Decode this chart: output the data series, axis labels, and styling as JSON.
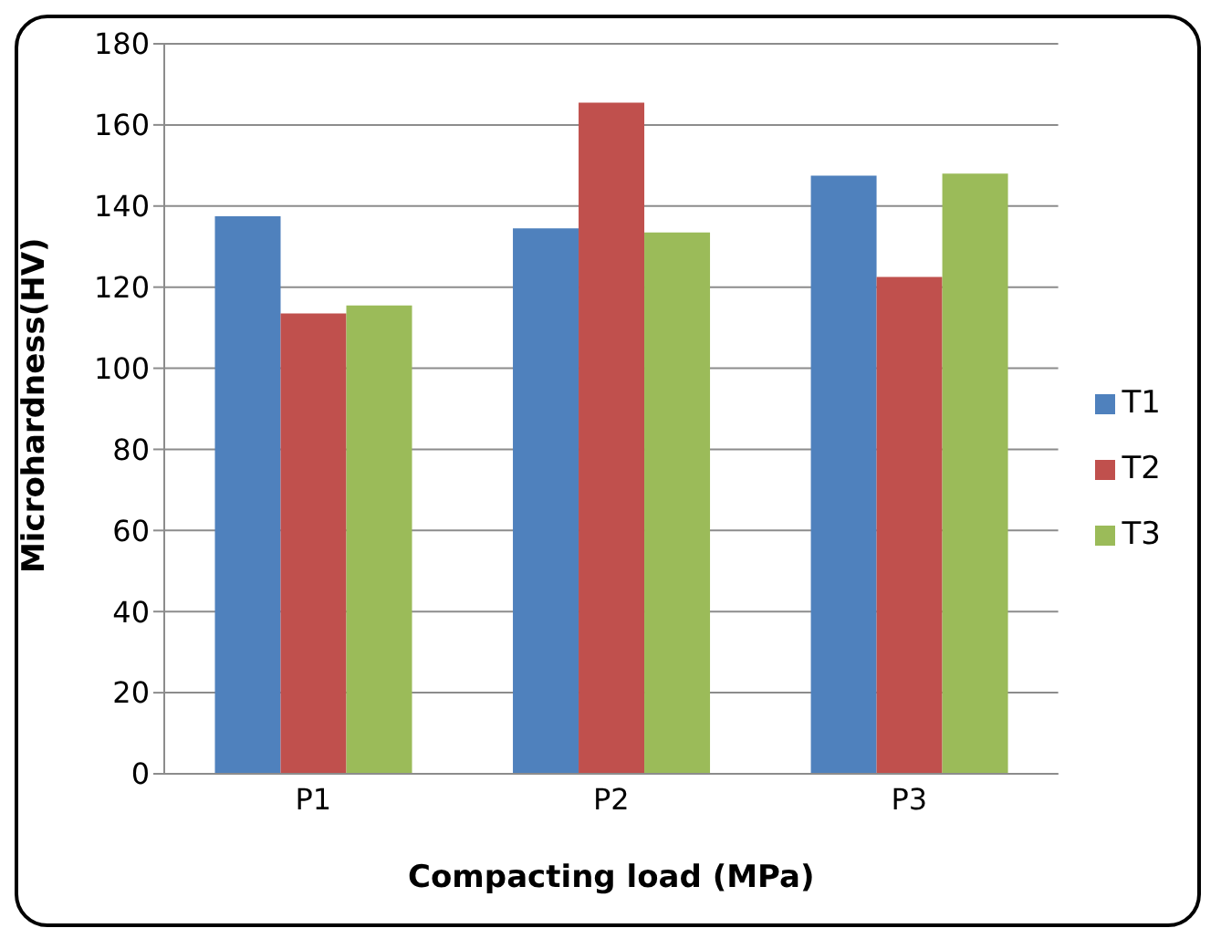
{
  "chart_data": {
    "type": "bar",
    "xlabel": "Compacting load (MPa)",
    "ylabel": "Microhardness(HV)",
    "categories": [
      "P1",
      "P2",
      "P3"
    ],
    "series": [
      {
        "name": "T1",
        "color": "#4f81bd",
        "values": [
          137.5,
          134.5,
          147.5
        ]
      },
      {
        "name": "T2",
        "color": "#c0504d",
        "values": [
          113.5,
          165.5,
          122.5
        ]
      },
      {
        "name": "T3",
        "color": "#9bbb59",
        "values": [
          115.5,
          133.5,
          148
        ]
      }
    ],
    "ylim": [
      0,
      180
    ],
    "yticks": [
      0,
      20,
      40,
      60,
      80,
      100,
      120,
      140,
      160,
      180
    ],
    "grid": "y",
    "legend": "right"
  }
}
